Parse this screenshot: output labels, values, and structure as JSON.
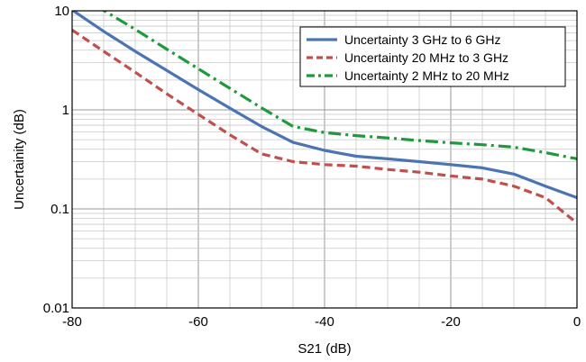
{
  "chart_data": {
    "type": "line",
    "xlabel": "S21 (dB)",
    "ylabel": "Uncertainity (dB)",
    "x_scale": "linear",
    "y_scale": "log",
    "xlim": [
      -80,
      0
    ],
    "ylim": [
      0.01,
      10
    ],
    "grid": true,
    "legend_position": "top-right",
    "x_ticks": [
      {
        "value": -80,
        "label": "-80"
      },
      {
        "value": -60,
        "label": "-60"
      },
      {
        "value": -40,
        "label": "-40"
      },
      {
        "value": -20,
        "label": "-20"
      },
      {
        "value": 0,
        "label": "0"
      }
    ],
    "y_ticks": [
      {
        "value": 10,
        "label": "10"
      },
      {
        "value": 1,
        "label": "1"
      },
      {
        "value": 0.1,
        "label": "0.1"
      },
      {
        "value": 0.01,
        "label": "0.01"
      }
    ],
    "series": [
      {
        "name": "Uncertainty 3 GHz to 6 GHz",
        "color": "#4a74b2",
        "dash": "solid",
        "points": [
          [
            -80,
            10.2
          ],
          [
            -75,
            6.2
          ],
          [
            -70,
            3.9
          ],
          [
            -65,
            2.5
          ],
          [
            -60,
            1.6
          ],
          [
            -55,
            1.04
          ],
          [
            -50,
            0.68
          ],
          [
            -45,
            0.47
          ],
          [
            -40,
            0.39
          ],
          [
            -35,
            0.34
          ],
          [
            -30,
            0.32
          ],
          [
            -25,
            0.3
          ],
          [
            -20,
            0.28
          ],
          [
            -15,
            0.26
          ],
          [
            -10,
            0.225
          ],
          [
            -5,
            0.17
          ],
          [
            0,
            0.13
          ]
        ]
      },
      {
        "name": "Uncertainty 20 MHz to  3 GHz",
        "color": "#c0504d",
        "dash": "dashed",
        "points": [
          [
            -80,
            6.4
          ],
          [
            -75,
            3.9
          ],
          [
            -70,
            2.4
          ],
          [
            -65,
            1.45
          ],
          [
            -60,
            0.9
          ],
          [
            -55,
            0.56
          ],
          [
            -50,
            0.36
          ],
          [
            -45,
            0.3
          ],
          [
            -40,
            0.28
          ],
          [
            -35,
            0.27
          ],
          [
            -30,
            0.25
          ],
          [
            -25,
            0.235
          ],
          [
            -20,
            0.215
          ],
          [
            -15,
            0.2
          ],
          [
            -10,
            0.17
          ],
          [
            -5,
            0.13
          ],
          [
            0,
            0.072
          ]
        ]
      },
      {
        "name": "Uncertainty 2 MHz to 20 MHz",
        "color": "#1e9a3c",
        "dash": "dashdot",
        "points": [
          [
            -80,
            13.5
          ],
          [
            -75,
            10.1
          ],
          [
            -70,
            6.5
          ],
          [
            -65,
            4.1
          ],
          [
            -60,
            2.6
          ],
          [
            -55,
            1.65
          ],
          [
            -50,
            1.05
          ],
          [
            -45,
            0.68
          ],
          [
            -40,
            0.59
          ],
          [
            -35,
            0.55
          ],
          [
            -30,
            0.52
          ],
          [
            -25,
            0.49
          ],
          [
            -20,
            0.465
          ],
          [
            -15,
            0.445
          ],
          [
            -10,
            0.42
          ],
          [
            -5,
            0.37
          ],
          [
            0,
            0.32
          ]
        ]
      }
    ]
  }
}
